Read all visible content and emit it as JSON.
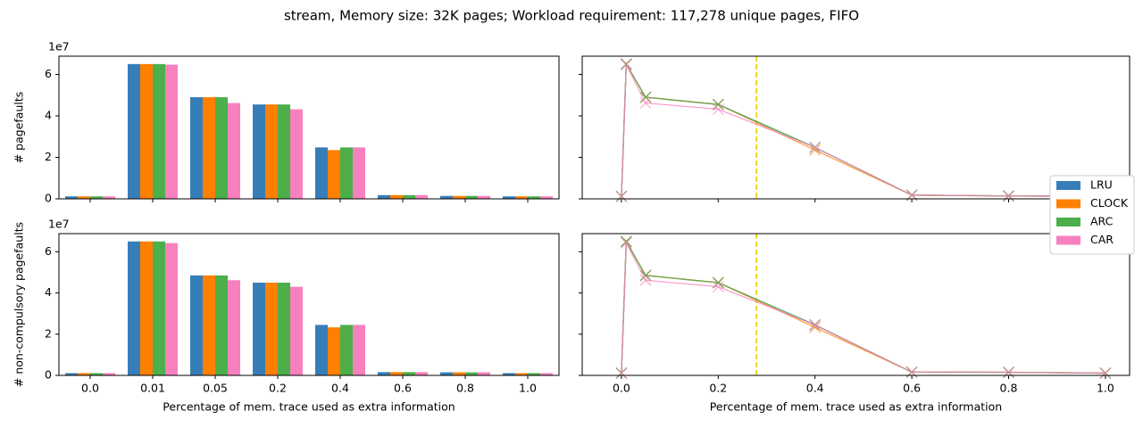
{
  "title": "stream, Memory size: 32K pages; Workload requirement: 117,278 unique pages, FIFO",
  "chart_data": [
    {
      "type": "bar",
      "ylabel": "# pagefaults",
      "y_offset_label": "1e7",
      "ylim": [
        0,
        6.88
      ],
      "yticks": [
        0,
        2,
        4,
        6
      ],
      "series": [
        {
          "name": "LRU",
          "color": "#377eb8",
          "values": [
            0.12,
            6.5,
            4.9,
            4.55,
            2.48,
            0.18,
            0.14,
            0.12
          ]
        },
        {
          "name": "CLOCK",
          "color": "#ff7f00",
          "values": [
            0.12,
            6.5,
            4.9,
            4.55,
            2.35,
            0.18,
            0.14,
            0.12
          ]
        },
        {
          "name": "ARC",
          "color": "#4daf4a",
          "values": [
            0.12,
            6.5,
            4.9,
            4.55,
            2.48,
            0.18,
            0.14,
            0.12
          ]
        },
        {
          "name": "CAR",
          "color": "#f781bf",
          "values": [
            0.12,
            6.47,
            4.62,
            4.32,
            2.48,
            0.18,
            0.14,
            0.12
          ]
        }
      ]
    },
    {
      "type": "line",
      "xlim": [
        -0.081,
        1.05
      ],
      "xticks": [
        0,
        0.2,
        0.4,
        0.6,
        0.8,
        1
      ],
      "ylim": [
        0,
        6.88
      ],
      "yticks": [
        0,
        2,
        4,
        6
      ],
      "vline": 0.279,
      "vline_color": "#e6d200",
      "x": [
        0,
        0.01,
        0.05,
        0.2,
        0.4,
        0.6,
        0.8,
        1
      ],
      "series": [
        {
          "color": "#377eb8",
          "values": [
            0.12,
            6.5,
            4.9,
            4.55,
            2.48,
            0.18,
            0.14,
            0.12
          ]
        },
        {
          "color": "#ff7f00",
          "values": [
            0.12,
            6.5,
            4.9,
            4.55,
            2.35,
            0.18,
            0.14,
            0.12
          ]
        },
        {
          "color": "#4daf4a",
          "values": [
            0.12,
            6.5,
            4.9,
            4.55,
            2.48,
            0.18,
            0.14,
            0.12
          ]
        },
        {
          "color": "#f781bf",
          "values": [
            0.12,
            6.47,
            4.62,
            4.32,
            2.48,
            0.18,
            0.14,
            0.12
          ]
        }
      ]
    },
    {
      "type": "bar",
      "ylabel": "# non-compulsory pagefaults",
      "y_offset_label": "1e7",
      "xlabel": "Percentage of mem. trace used as extra information",
      "categories": [
        "0.0",
        "0.01",
        "0.05",
        "0.2",
        "0.4",
        "0.6",
        "0.8",
        "1.0"
      ],
      "ylim": [
        0,
        6.88
      ],
      "yticks": [
        0,
        2,
        4,
        6
      ],
      "series": [
        {
          "color": "#377eb8",
          "values": [
            0.11,
            6.5,
            4.85,
            4.5,
            2.45,
            0.16,
            0.15,
            0.11
          ]
        },
        {
          "color": "#ff7f00",
          "values": [
            0.11,
            6.5,
            4.85,
            4.5,
            2.33,
            0.16,
            0.15,
            0.11
          ]
        },
        {
          "color": "#4daf4a",
          "values": [
            0.11,
            6.5,
            4.85,
            4.5,
            2.45,
            0.16,
            0.15,
            0.11
          ]
        },
        {
          "color": "#f781bf",
          "values": [
            0.11,
            6.42,
            4.62,
            4.3,
            2.45,
            0.16,
            0.15,
            0.11
          ]
        }
      ]
    },
    {
      "type": "line",
      "xlabel": "Percentage of mem. trace used as extra information",
      "xlim": [
        -0.081,
        1.05
      ],
      "xticks": [
        {
          "value": 0,
          "label": "0.0"
        },
        0.2,
        0.4,
        0.6,
        0.8,
        {
          "value": 1,
          "label": "1.0"
        }
      ],
      "ylim": [
        0,
        6.88
      ],
      "yticks": [
        0,
        2,
        4,
        6
      ],
      "vline": 0.279,
      "vline_color": "#e6d200",
      "x": [
        0,
        0.01,
        0.05,
        0.2,
        0.4,
        0.6,
        0.8,
        1
      ],
      "series": [
        {
          "color": "#377eb8",
          "values": [
            0.11,
            6.5,
            4.85,
            4.5,
            2.45,
            0.16,
            0.15,
            0.11
          ]
        },
        {
          "color": "#ff7f00",
          "values": [
            0.11,
            6.5,
            4.85,
            4.5,
            2.33,
            0.16,
            0.15,
            0.11
          ]
        },
        {
          "color": "#4daf4a",
          "values": [
            0.11,
            6.5,
            4.85,
            4.5,
            2.45,
            0.16,
            0.15,
            0.11
          ]
        },
        {
          "color": "#f781bf",
          "values": [
            0.11,
            6.42,
            4.62,
            4.3,
            2.45,
            0.16,
            0.15,
            0.11
          ]
        }
      ]
    }
  ]
}
